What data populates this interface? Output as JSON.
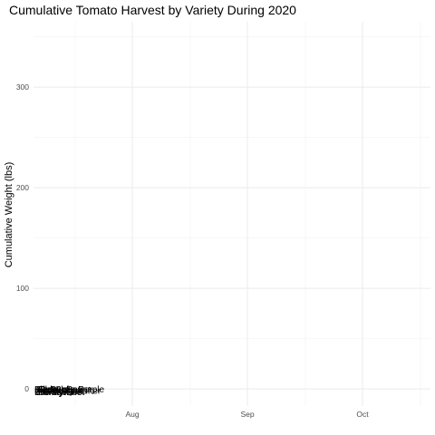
{
  "chart_data": {
    "type": "line",
    "title": "Cumulative Tomato Harvest by Variety During 2020",
    "xlabel": "",
    "ylabel": "Cumulative Weight (lbs)",
    "x_axis": {
      "type": "date",
      "ticks": [
        "Aug",
        "Sep",
        "Oct"
      ]
    },
    "y_axis": {
      "ticks": [
        0,
        100,
        200,
        300
      ],
      "ylim": [
        -17,
        365
      ]
    },
    "grid": true,
    "legend": "none",
    "series_labels": [
      "Big Beef",
      "Amish Paste",
      "Bonny Best",
      "Better Boy",
      "Black Krim",
      "Jet Star",
      "Old German",
      "Mortgage Lifter",
      "Brandywine",
      "Cherokee Purple"
    ],
    "series_label_y": 0
  }
}
